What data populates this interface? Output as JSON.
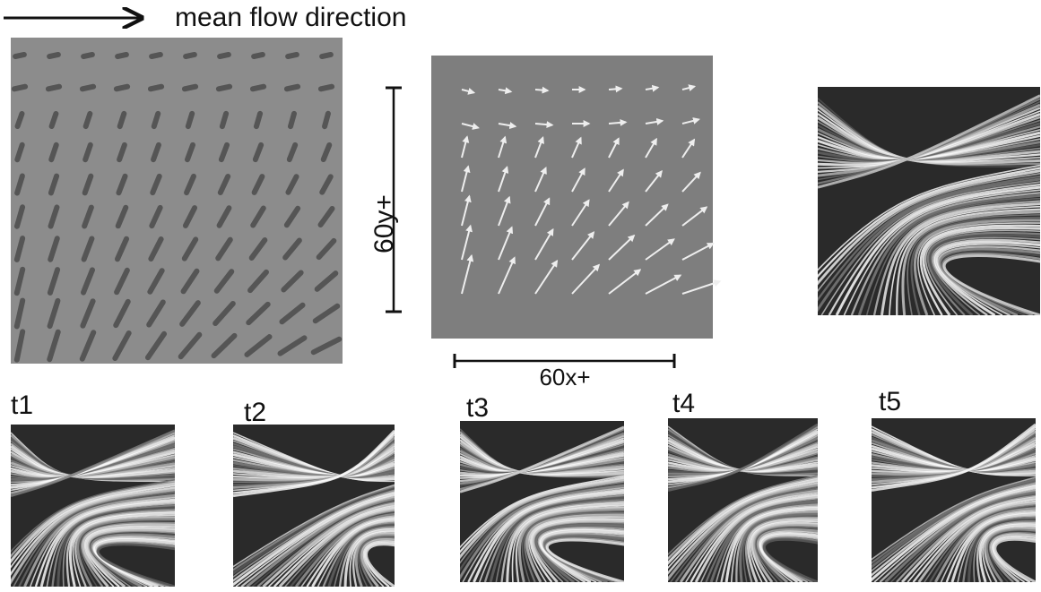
{
  "header": {
    "arrow_label": "mean flow direction"
  },
  "scale": {
    "y_label": "60y+",
    "x_label": "60x+"
  },
  "panels": [
    {
      "label": "t1"
    },
    {
      "label": "t2"
    },
    {
      "label": "t3"
    },
    {
      "label": "t4"
    },
    {
      "label": "t5"
    }
  ]
}
